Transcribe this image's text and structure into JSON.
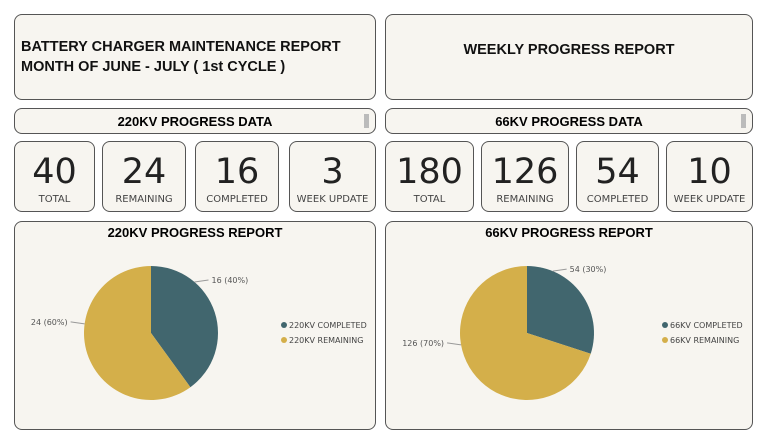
{
  "header": {
    "title_line1": "BATTERY CHARGER MAINTENANCE REPORT",
    "title_line2": "MONTH OF JUNE - JULY ( 1st CYCLE )",
    "weekly": "WEEKLY PROGRESS REPORT"
  },
  "kv220": {
    "bar": "220KV PROGRESS DATA",
    "stats": [
      {
        "value": "40",
        "label": "TOTAL"
      },
      {
        "value": "24",
        "label": "REMAINING"
      },
      {
        "value": "16",
        "label": "COMPLETED"
      },
      {
        "value": "3",
        "label": "WEEK UPDATE"
      }
    ],
    "report_title": "220KV PROGRESS REPORT"
  },
  "kv66": {
    "bar": "66KV PROGRESS DATA",
    "stats": [
      {
        "value": "180",
        "label": "TOTAL"
      },
      {
        "value": "126",
        "label": "REMAINING"
      },
      {
        "value": "54",
        "label": "COMPLETED"
      },
      {
        "value": "10",
        "label": "WEEK UPDATE"
      }
    ],
    "report_title": "66KV PROGRESS REPORT"
  },
  "chart_data": [
    {
      "type": "pie",
      "title": "220KV PROGRESS REPORT",
      "legend": "right",
      "slices": [
        {
          "name": "220KV COMPLETED",
          "value": 16,
          "label": "16 (40%)",
          "color": "#41666e"
        },
        {
          "name": "220KV REMAINING",
          "value": 24,
          "label": "24 (60%)",
          "color": "#d4af4a"
        }
      ]
    },
    {
      "type": "pie",
      "title": "66KV PROGRESS REPORT",
      "legend": "right",
      "slices": [
        {
          "name": "66KV COMPLETED",
          "value": 54,
          "label": "54 (30%)",
          "color": "#41666e"
        },
        {
          "name": "66KV REMAINING",
          "value": 126,
          "label": "126 (70%)",
          "color": "#d4af4a"
        }
      ]
    }
  ]
}
